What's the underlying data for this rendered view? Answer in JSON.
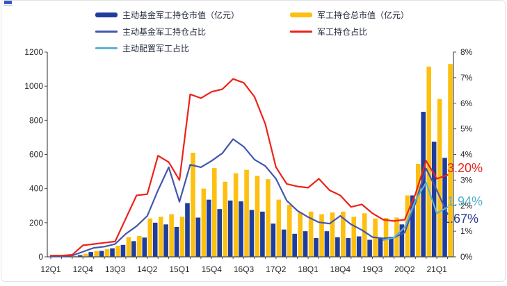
{
  "page": {
    "background": "#ffffff",
    "frame_border_color": "#e2e2e2"
  },
  "corner_artifact": {
    "color": "#3a57c4"
  },
  "legend": {
    "items": [
      {
        "label": "主动基金军工持仓市值（亿元）",
        "type": "bar",
        "color": "#1f3d9c"
      },
      {
        "label": "军工持仓总市值（亿元）",
        "type": "bar",
        "color": "#fcc011"
      },
      {
        "label": "主动基金军工持仓占比",
        "type": "line",
        "color": "#4456ae"
      },
      {
        "label": "军工持仓占比",
        "type": "line",
        "color": "#ee2119"
      },
      {
        "label": "主动配置军工占比",
        "type": "line",
        "color": "#5cb4d0"
      }
    ]
  },
  "chart_data": {
    "type": "combo-bar-line",
    "title": "",
    "grid": false,
    "legend_position": "top",
    "categories": [
      "12Q1",
      "12Q2",
      "12Q3",
      "12Q4",
      "13Q1",
      "13Q2",
      "13Q3",
      "13Q4",
      "14Q1",
      "14Q2",
      "14Q3",
      "14Q4",
      "15Q1",
      "15Q2",
      "15Q3",
      "15Q4",
      "16Q1",
      "16Q2",
      "16Q3",
      "16Q4",
      "17Q1",
      "17Q2",
      "17Q3",
      "17Q4",
      "18Q1",
      "18Q2",
      "18Q3",
      "18Q4",
      "19Q1",
      "19Q2",
      "19Q3",
      "19Q4",
      "20Q1",
      "20Q2",
      "20Q3",
      "20Q4",
      "21Q1",
      "21Q2"
    ],
    "x_axis_visible_labels": [
      "12Q1",
      "12Q4",
      "13Q3",
      "14Q2",
      "15Q1",
      "15Q4",
      "16Q3",
      "17Q2",
      "18Q1",
      "18Q4",
      "19Q3",
      "20Q2",
      "21Q1"
    ],
    "left_axis": {
      "min": 0,
      "max": 1200,
      "tick_labels": [
        "0",
        "200",
        "400",
        "600",
        "800",
        "1000",
        "1200"
      ]
    },
    "right_axis": {
      "min_pct": 0,
      "max_pct": 8,
      "tick_labels": [
        "0%",
        "1%",
        "2%",
        "3%",
        "4%",
        "5%",
        "6%",
        "7%",
        "8%"
      ]
    },
    "series": [
      {
        "name": "主动基金军工持仓市值（亿元）",
        "type": "bar",
        "axis": "left",
        "color": "#1f3d9c",
        "values": [
          0,
          0,
          2,
          10,
          28,
          35,
          50,
          70,
          92,
          113,
          200,
          190,
          175,
          315,
          230,
          335,
          280,
          330,
          325,
          275,
          265,
          195,
          160,
          135,
          150,
          110,
          150,
          115,
          110,
          120,
          100,
          108,
          118,
          190,
          360,
          850,
          675,
          580
        ]
      },
      {
        "name": "军工持仓总市值（亿元）",
        "type": "bar",
        "axis": "left",
        "color": "#fcc011",
        "values": [
          0,
          0,
          4,
          18,
          35,
          45,
          65,
          115,
          122,
          225,
          235,
          250,
          235,
          610,
          400,
          520,
          440,
          490,
          510,
          475,
          455,
          335,
          305,
          260,
          265,
          250,
          260,
          265,
          235,
          255,
          225,
          228,
          230,
          360,
          545,
          1115,
          925,
          1130
        ]
      },
      {
        "name": "主动基金军工持仓占比",
        "type": "line",
        "axis": "right",
        "color": "#4456ae",
        "values": [
          0.02,
          0.02,
          0.05,
          0.2,
          0.35,
          0.4,
          0.5,
          0.9,
          1.2,
          1.6,
          2.6,
          3.5,
          2.15,
          3.6,
          3.5,
          3.75,
          4.05,
          4.6,
          4.3,
          3.8,
          3.55,
          3.05,
          2.2,
          1.8,
          1.55,
          1.35,
          1.3,
          1.6,
          1.27,
          1.05,
          0.77,
          0.72,
          0.75,
          0.95,
          2.1,
          3.45,
          2.6,
          1.67
        ]
      },
      {
        "name": "军工持仓占比",
        "type": "line",
        "axis": "right",
        "color": "#ee2119",
        "values": [
          0.05,
          0.05,
          0.08,
          0.45,
          0.5,
          0.55,
          0.6,
          1.5,
          2.4,
          2.45,
          3.95,
          3.7,
          3.0,
          6.35,
          6.2,
          6.45,
          6.55,
          6.95,
          6.8,
          6.25,
          5.2,
          3.5,
          2.85,
          2.75,
          2.7,
          3.05,
          2.6,
          2.4,
          1.95,
          2.05,
          1.7,
          1.45,
          1.4,
          1.45,
          2.45,
          3.75,
          3.05,
          3.2
        ]
      },
      {
        "name": "主动配置军工占比",
        "type": "line",
        "axis": "right",
        "color": "#5cb4d0",
        "values": [
          null,
          null,
          null,
          null,
          null,
          null,
          null,
          null,
          null,
          null,
          null,
          null,
          null,
          null,
          null,
          null,
          null,
          null,
          null,
          null,
          null,
          null,
          null,
          null,
          null,
          null,
          null,
          null,
          null,
          null,
          null,
          0.65,
          0.75,
          1.15,
          2.2,
          2.9,
          1.7,
          1.94
        ]
      }
    ],
    "annotations": [
      {
        "text": "3.20%",
        "color": "#e8251d",
        "series": "军工持仓占比"
      },
      {
        "text": "1.94%",
        "color": "#56aecb",
        "series": "主动配置军工占比"
      },
      {
        "text": "1.67%",
        "color": "#2c3f8f",
        "series": "主动基金军工持仓占比"
      }
    ]
  }
}
